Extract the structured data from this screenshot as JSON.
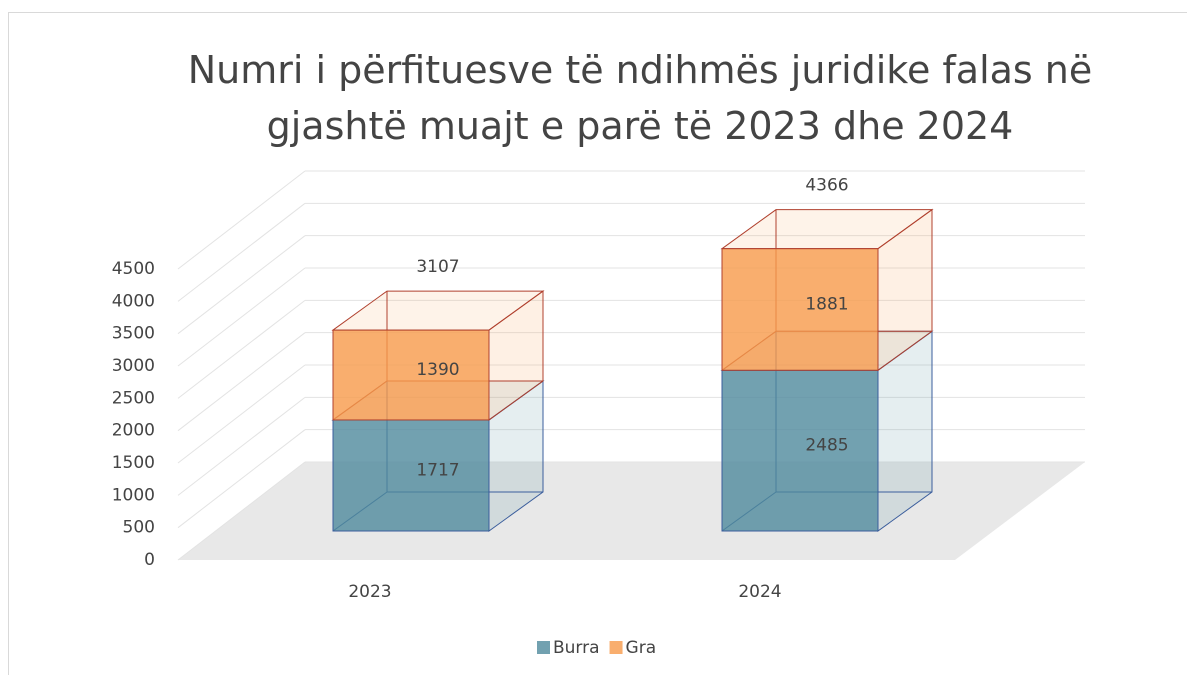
{
  "chart_data": {
    "type": "bar3d_stacked",
    "title": "Numri i përfituesve të ndihmës juridike falas në gjashtë muajt e parë të 2023 dhe 2024",
    "categories": [
      "2023",
      "2024"
    ],
    "series": [
      {
        "name": "Burra",
        "color": "#4f8a9c",
        "edge": "#3a5d9c",
        "values": [
          1717,
          2485
        ]
      },
      {
        "name": "Gra",
        "color": "#f89a4a",
        "edge": "#b0402e",
        "values": [
          1390,
          1881
        ]
      }
    ],
    "totals": [
      3107,
      4366
    ],
    "ylim": [
      0,
      4500
    ],
    "yticks": [
      0,
      500,
      1000,
      1500,
      2000,
      2500,
      3000,
      3500,
      4000,
      4500
    ],
    "grid": true,
    "legend": "bottom"
  }
}
